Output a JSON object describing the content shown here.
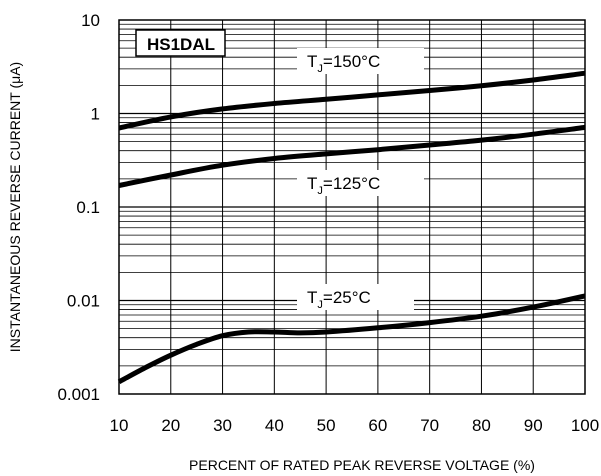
{
  "chart_data": {
    "type": "line",
    "title": "",
    "device_label": "HS1DAL",
    "xlabel": "PERCENT OF RATED PEAK REVERSE VOLTAGE (%)",
    "ylabel": "INSTANTANEOUS REVERSE CURRENT (μA)",
    "x_scale": "linear",
    "y_scale": "log",
    "xlim": [
      10,
      100
    ],
    "ylim": [
      0.001,
      10
    ],
    "x_ticks": [
      "10",
      "20",
      "30",
      "40",
      "50",
      "60",
      "70",
      "80",
      "90",
      "100"
    ],
    "y_ticks": [
      "10",
      "1",
      "0.1",
      "0.01",
      "0.001"
    ],
    "grid": true,
    "series": [
      {
        "name": "TJ=150°C",
        "label_main": "T",
        "label_sub": "J",
        "label_rest": "=150°C",
        "x": [
          10,
          20,
          30,
          40,
          50,
          60,
          70,
          80,
          90,
          100
        ],
        "y": [
          0.7,
          0.92,
          1.12,
          1.28,
          1.42,
          1.58,
          1.76,
          1.98,
          2.28,
          2.7
        ]
      },
      {
        "name": "TJ=125°C",
        "label_main": "T",
        "label_sub": "J",
        "label_rest": "=125°C",
        "x": [
          10,
          20,
          30,
          40,
          50,
          60,
          70,
          80,
          90,
          100
        ],
        "y": [
          0.17,
          0.22,
          0.28,
          0.33,
          0.37,
          0.41,
          0.46,
          0.52,
          0.6,
          0.71
        ]
      },
      {
        "name": "TJ=25°C",
        "label_main": "T",
        "label_sub": "J",
        "label_rest": "=25°C",
        "x": [
          10,
          15,
          20,
          25,
          30,
          35,
          40,
          45,
          50,
          60,
          70,
          80,
          90,
          100
        ],
        "y": [
          0.00135,
          0.0019,
          0.0026,
          0.0034,
          0.0042,
          0.0046,
          0.0046,
          0.0045,
          0.0046,
          0.0051,
          0.0058,
          0.0068,
          0.0085,
          0.0112
        ]
      }
    ]
  }
}
